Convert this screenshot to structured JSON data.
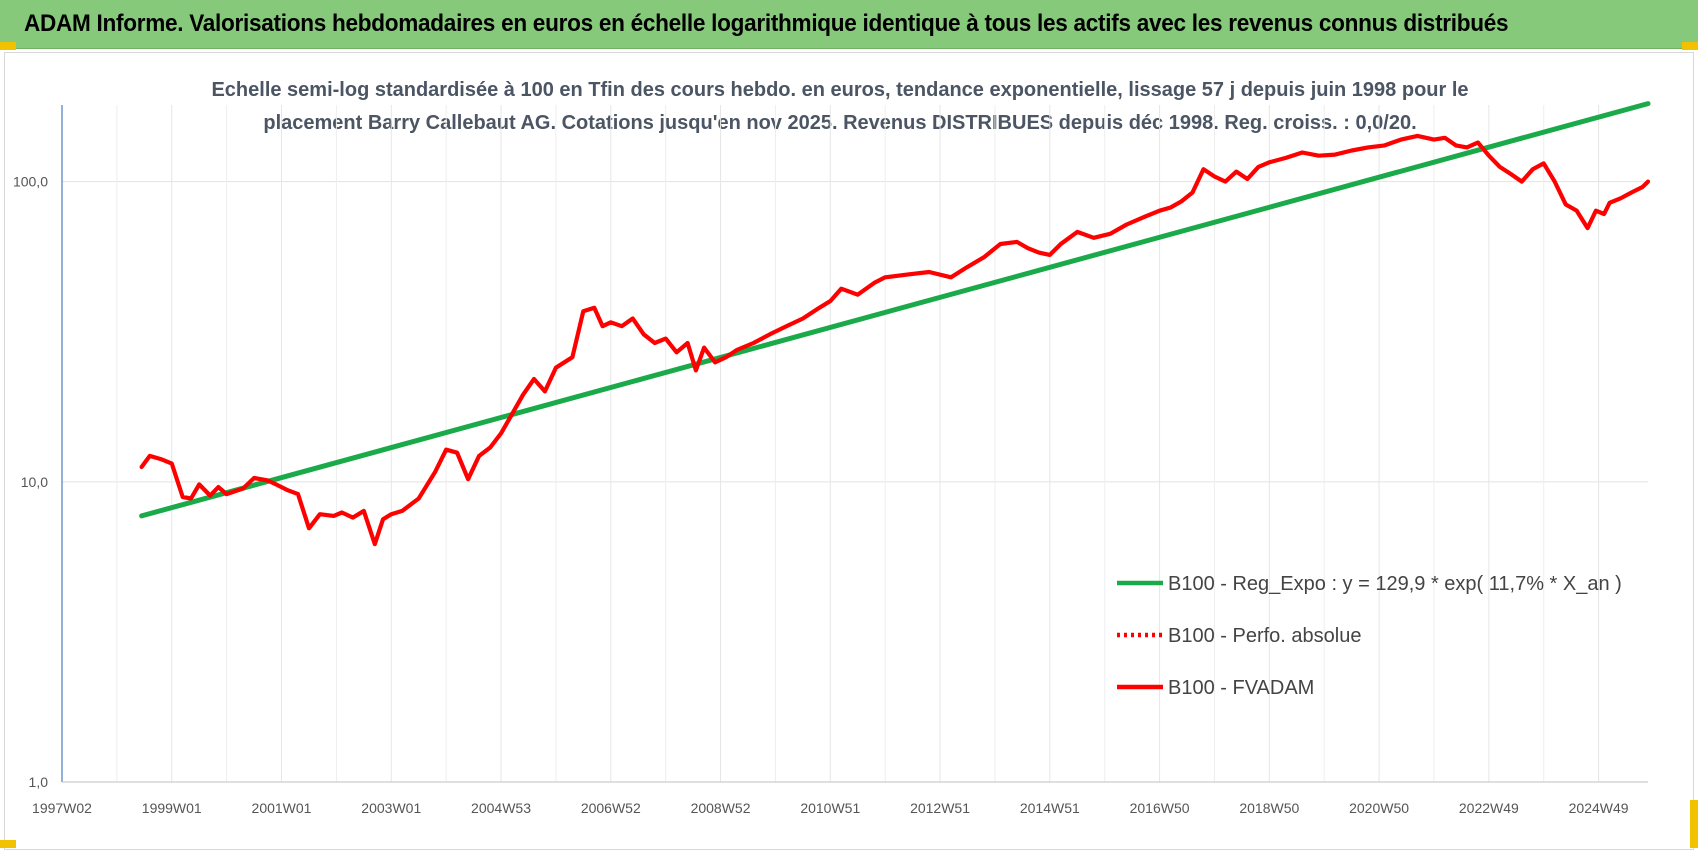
{
  "banner": {
    "title": "ADAM Informe. Valorisations hebdomadaires en euros en échelle logarithmique identique à tous les actifs avec les revenus connus distribués"
  },
  "chart_data": {
    "type": "line",
    "title_line1": "Echelle semi-log standardisée à 100 en Tfin des cours hebdo. en euros, tendance exponentielle, lissage 57 j depuis juin 1998 pour le",
    "title_line2": "placement Barry Callebaut AG. Cotations jusqu'en nov 2025. Revenus DISTRIBUES depuis déc 1998. Reg. croiss. : 0,0/20.",
    "y_scale": "log",
    "ylim": [
      1,
      180
    ],
    "y_ticks": [
      "1,0",
      "10,0",
      "100,0"
    ],
    "x_ticks": [
      "1997W02",
      "1999W01",
      "2001W01",
      "2003W01",
      "2004W53",
      "2006W52",
      "2008W52",
      "2010W51",
      "2012W51",
      "2014W51",
      "2016W50",
      "2018W50",
      "2020W50",
      "2022W49",
      "2024W49"
    ],
    "xlim": [
      1997.0,
      2025.9
    ],
    "grid": true,
    "legend_position": "bottom-right",
    "series": [
      {
        "name": "B100 - Reg_Expo : y = 129,9 * exp( 11,7% *  X_an )",
        "color": "#1aaa4a",
        "style": "solid",
        "x": [
          1998.45,
          2025.9
        ],
        "y": [
          7.7,
          182
        ]
      },
      {
        "name": "B100 - Perfo. absolue",
        "color": "#ff0000",
        "style": "dotted",
        "x": [],
        "y": []
      },
      {
        "name": "B100 - FVADAM",
        "color": "#ff0000",
        "style": "solid",
        "x": [
          1998.45,
          1998.6,
          1998.8,
          1999.0,
          1999.2,
          1999.35,
          1999.5,
          1999.7,
          1999.85,
          2000.0,
          2000.3,
          2000.5,
          2000.75,
          2000.9,
          2001.1,
          2001.3,
          2001.5,
          2001.7,
          2001.95,
          2002.1,
          2002.3,
          2002.5,
          2002.7,
          2002.85,
          2003.0,
          2003.2,
          2003.5,
          2003.8,
          2004.0,
          2004.2,
          2004.4,
          2004.6,
          2004.8,
          2005.0,
          2005.2,
          2005.4,
          2005.6,
          2005.8,
          2006.0,
          2006.3,
          2006.5,
          2006.7,
          2006.85,
          2007.0,
          2007.2,
          2007.4,
          2007.6,
          2007.8,
          2008.0,
          2008.2,
          2008.4,
          2008.55,
          2008.7,
          2008.9,
          2009.1,
          2009.3,
          2009.6,
          2009.9,
          2010.2,
          2010.5,
          2010.8,
          2011.0,
          2011.2,
          2011.5,
          2011.8,
          2012.0,
          2012.4,
          2012.8,
          2013.2,
          2013.5,
          2013.8,
          2014.1,
          2014.4,
          2014.6,
          2014.8,
          2015.0,
          2015.2,
          2015.5,
          2015.8,
          2016.1,
          2016.4,
          2016.7,
          2017.0,
          2017.2,
          2017.4,
          2017.6,
          2017.8,
          2018.0,
          2018.2,
          2018.4,
          2018.6,
          2018.8,
          2019.0,
          2019.3,
          2019.6,
          2019.9,
          2020.2,
          2020.5,
          2020.8,
          2021.1,
          2021.4,
          2021.7,
          2022.0,
          2022.2,
          2022.4,
          2022.6,
          2022.8,
          2023.0,
          2023.2,
          2023.4,
          2023.6,
          2023.8,
          2024.0,
          2024.2,
          2024.4,
          2024.6,
          2024.8,
          2024.95,
          2025.1,
          2025.2,
          2025.4,
          2025.6,
          2025.8,
          2025.9
        ],
        "y": [
          11.2,
          12.2,
          11.9,
          11.5,
          8.9,
          8.8,
          9.8,
          9.0,
          9.6,
          9.1,
          9.5,
          10.3,
          10.1,
          9.8,
          9.4,
          9.1,
          7.0,
          7.8,
          7.7,
          7.9,
          7.6,
          8.0,
          6.2,
          7.5,
          7.8,
          8.0,
          8.8,
          10.8,
          12.8,
          12.5,
          10.2,
          12.2,
          13.0,
          14.5,
          16.8,
          19.5,
          22.0,
          20.0,
          24.0,
          26.0,
          37.0,
          38.0,
          33.0,
          34.0,
          33.0,
          35.0,
          31.0,
          29.0,
          30.0,
          27.0,
          29.0,
          23.5,
          28.0,
          25.0,
          26.0,
          27.5,
          29.0,
          31.0,
          33.0,
          35.0,
          38.0,
          40.0,
          44.0,
          42.0,
          46.0,
          48.0,
          49.0,
          50.0,
          48.0,
          52.0,
          56.0,
          62.0,
          63.0,
          60.0,
          58.0,
          57.0,
          62.0,
          68.0,
          65.0,
          67.0,
          72.0,
          76.0,
          80.0,
          82.0,
          86.0,
          92.0,
          110.0,
          104.0,
          100.0,
          108.0,
          102.0,
          112.0,
          116.0,
          120.0,
          125.0,
          122.0,
          123.0,
          127.0,
          130.0,
          132.0,
          138.0,
          142.0,
          138.0,
          140.0,
          132.0,
          130.0,
          135.0,
          122.0,
          112.0,
          106.0,
          100.0,
          110.0,
          115.0,
          100.0,
          84.0,
          80.0,
          70.0,
          80.0,
          78.0,
          85.0,
          88.0,
          92.0,
          96.0,
          100.0
        ]
      }
    ]
  }
}
